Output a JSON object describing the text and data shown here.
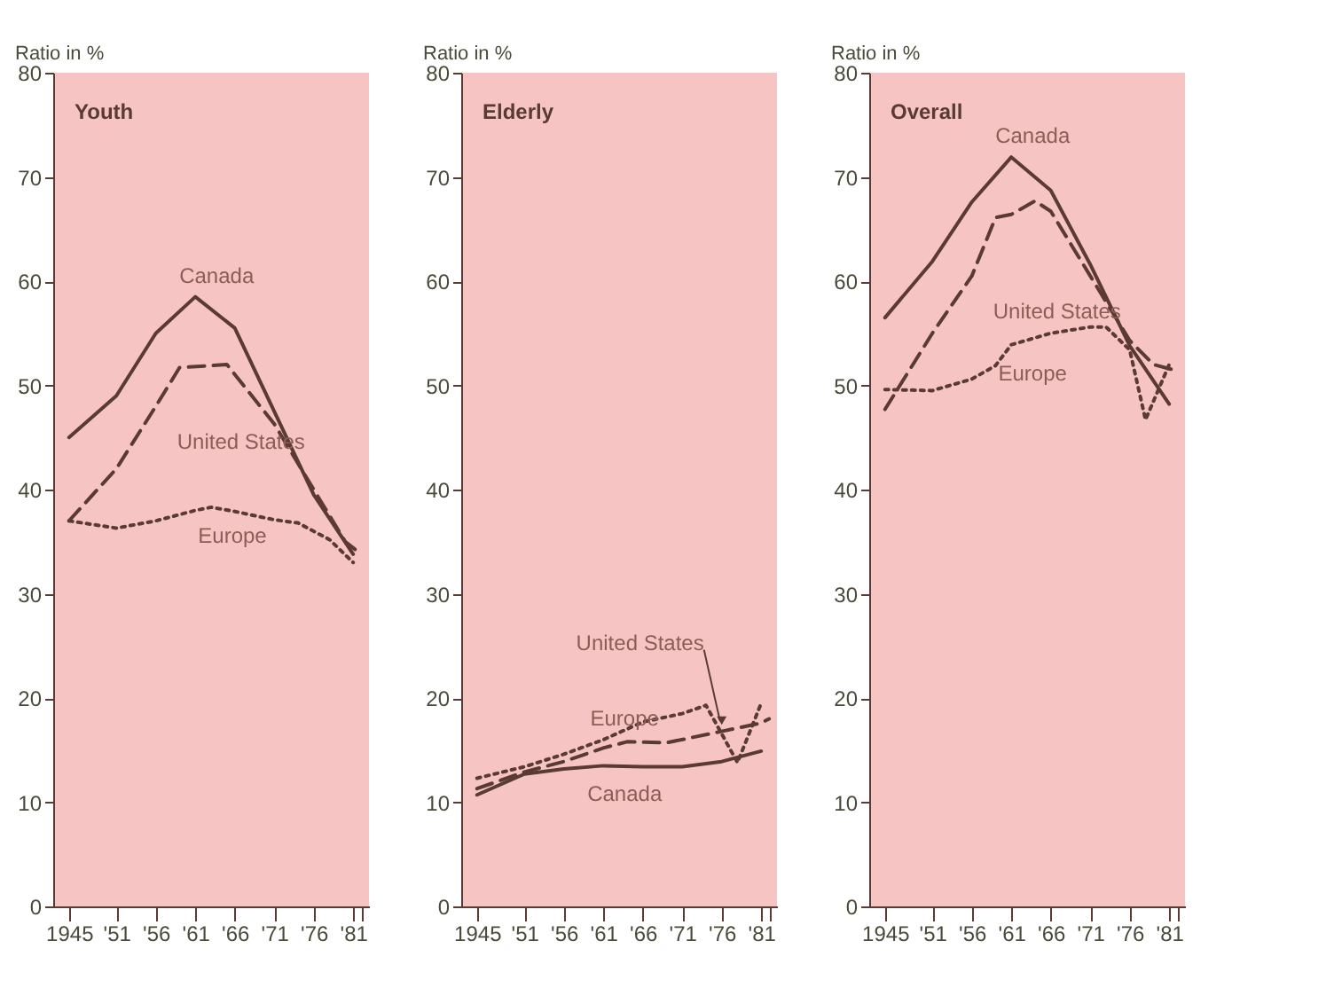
{
  "chart_data": [
    {
      "type": "line",
      "title": "Youth",
      "ylabel": "Ratio in %",
      "xlim": [
        1943,
        1983
      ],
      "ylim": [
        0,
        80
      ],
      "yticks": [
        0,
        10,
        20,
        30,
        40,
        50,
        60,
        70,
        80
      ],
      "xticks": [
        1945,
        {
          "value": 1951,
          "label": "'51"
        },
        {
          "value": 1956,
          "label": "'56"
        },
        {
          "value": 1961,
          "label": "'61"
        },
        {
          "value": 1966,
          "label": "'66"
        },
        {
          "value": 1971,
          "label": "'71"
        },
        {
          "value": 1976,
          "label": "'76"
        },
        {
          "value": 1981,
          "label": "'81"
        },
        {
          "value": 1982,
          "label": null
        }
      ],
      "grid": false,
      "legend": false,
      "series": [
        {
          "name": "Canada",
          "color": "#5a3b34",
          "line_style": "solid",
          "x": [
            1945,
            1951,
            1956,
            1961,
            1966,
            1971,
            1976,
            1981
          ],
          "values": [
            45,
            49,
            55,
            58.5,
            55.5,
            47.5,
            39.5,
            33.8
          ]
        },
        {
          "name": "United States",
          "color": "#5a3b34",
          "line_style": "dashed",
          "x": [
            1945,
            1951,
            1956,
            1959,
            1965,
            1971,
            1976,
            1980,
            1982
          ],
          "values": [
            37,
            42,
            48,
            51.7,
            52,
            46.3,
            40,
            35,
            33.8
          ]
        },
        {
          "name": "Europe",
          "color": "#5a3b34",
          "line_style": "dotted",
          "x": [
            1945,
            1951,
            1956,
            1961,
            1963,
            1966,
            1971,
            1974,
            1978,
            1981
          ],
          "values": [
            37,
            36.3,
            37,
            38,
            38.3,
            37.9,
            37.1,
            36.8,
            35.2,
            33
          ]
        }
      ]
    },
    {
      "type": "line",
      "title": "Elderly",
      "ylabel": "Ratio in %",
      "xlim": [
        1943,
        1983
      ],
      "ylim": [
        0,
        80
      ],
      "yticks": [
        0,
        10,
        20,
        30,
        40,
        50,
        60,
        70,
        80
      ],
      "xticks": [
        1945,
        {
          "value": 1951,
          "label": "'51"
        },
        {
          "value": 1956,
          "label": "'56"
        },
        {
          "value": 1961,
          "label": "'61"
        },
        {
          "value": 1966,
          "label": "'66"
        },
        {
          "value": 1971,
          "label": "'71"
        },
        {
          "value": 1976,
          "label": "'76"
        },
        {
          "value": 1981,
          "label": "'81"
        },
        {
          "value": 1982,
          "label": null
        }
      ],
      "grid": false,
      "legend": false,
      "series": [
        {
          "name": "Canada",
          "color": "#5a3b34",
          "line_style": "solid",
          "x": [
            1945,
            1951,
            1956,
            1961,
            1966,
            1971,
            1976,
            1981
          ],
          "values": [
            10.7,
            12.7,
            13.2,
            13.5,
            13.4,
            13.4,
            13.9,
            14.9
          ]
        },
        {
          "name": "United States",
          "color": "#5a3b34",
          "line_style": "dashed",
          "x": [
            1945,
            1951,
            1956,
            1961,
            1964,
            1969,
            1976,
            1981,
            1982
          ],
          "values": [
            11.3,
            12.9,
            13.9,
            15.2,
            15.8,
            15.7,
            16.8,
            17.6,
            18
          ]
        },
        {
          "name": "Europe",
          "color": "#5a3b34",
          "line_style": "dotted",
          "x": [
            1945,
            1951,
            1956,
            1961,
            1966,
            1971,
            1974,
            1978,
            1981
          ],
          "values": [
            12.3,
            13.4,
            14.6,
            16,
            17.7,
            18.5,
            19.3,
            13.8,
            19.5
          ]
        }
      ]
    },
    {
      "type": "line",
      "title": "Overall",
      "ylabel": "Ratio in %",
      "xlim": [
        1943,
        1983
      ],
      "ylim": [
        0,
        80
      ],
      "yticks": [
        0,
        10,
        20,
        30,
        40,
        50,
        60,
        70,
        80
      ],
      "xticks": [
        1945,
        {
          "value": 1951,
          "label": "'51"
        },
        {
          "value": 1956,
          "label": "'56"
        },
        {
          "value": 1961,
          "label": "'61"
        },
        {
          "value": 1966,
          "label": "'66"
        },
        {
          "value": 1971,
          "label": "'71"
        },
        {
          "value": 1976,
          "label": "'76"
        },
        {
          "value": 1981,
          "label": "'81"
        },
        {
          "value": 1982,
          "label": null
        }
      ],
      "grid": false,
      "legend": false,
      "series": [
        {
          "name": "Canada",
          "color": "#5a3b34",
          "line_style": "solid",
          "x": [
            1945,
            1951,
            1956,
            1961,
            1966,
            1971,
            1976,
            1981
          ],
          "values": [
            56.5,
            61.9,
            67.6,
            71.9,
            68.7,
            61.6,
            53.8,
            48.2
          ]
        },
        {
          "name": "United States",
          "color": "#5a3b34",
          "line_style": "dashed",
          "x": [
            1945,
            1951,
            1956,
            1959,
            1961,
            1964,
            1966,
            1971,
            1976,
            1979,
            1981,
            1982
          ],
          "values": [
            47.7,
            55,
            60.5,
            66.1,
            66.4,
            67.7,
            66.7,
            60.5,
            54.3,
            52,
            51.6,
            51.4
          ]
        },
        {
          "name": "Europe",
          "color": "#5a3b34",
          "line_style": "dotted",
          "x": [
            1945,
            1951,
            1956,
            1959,
            1961,
            1966,
            1971,
            1973,
            1976,
            1978,
            1981
          ],
          "values": [
            49.6,
            49.5,
            50.6,
            51.9,
            53.9,
            55,
            55.6,
            55.6,
            53.4,
            46.7,
            52
          ]
        }
      ]
    }
  ]
}
